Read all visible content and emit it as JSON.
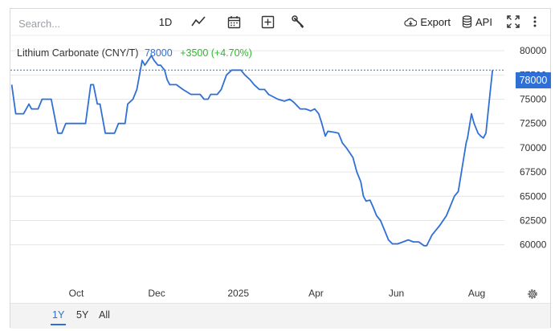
{
  "toolbar": {
    "search_placeholder": "Search...",
    "interval_label": "1D",
    "export_label": "Export",
    "api_label": "API"
  },
  "legend": {
    "name": "Lithium Carbonate (CNY/T)",
    "value": "78000",
    "change": "+3500 (+4.70%)"
  },
  "price_tag": "78000",
  "range_buttons": [
    "1Y",
    "5Y",
    "All"
  ],
  "active_range": "1Y",
  "colors": {
    "line": "#2f6fd6",
    "positive_change": "#2eb82e",
    "grid": "#e6e6e6"
  },
  "chart_data": {
    "type": "line",
    "title": "",
    "xlabel": "",
    "ylabel": "",
    "x_tick_labels": [
      "Oct",
      "Dec",
      "2025",
      "Apr",
      "Jun",
      "Aug"
    ],
    "x_ticks_at": [
      "2024-10-01",
      "2024-12-01",
      "2025-02-01",
      "2025-04-01",
      "2025-06-01",
      "2025-08-01"
    ],
    "x_range": [
      "2024-08-12",
      "2025-08-22"
    ],
    "y_ticks": [
      60000,
      62500,
      65000,
      67500,
      70000,
      72500,
      75000,
      77500,
      80000
    ],
    "ylim": [
      56000,
      81500
    ],
    "grid": true,
    "y_axis_side": "right",
    "series": [
      {
        "name": "Lithium Carbonate (CNY/T)",
        "points": [
          [
            "2024-08-13",
            76500
          ],
          [
            "2024-08-16",
            73500
          ],
          [
            "2024-08-22",
            73500
          ],
          [
            "2024-08-26",
            74500
          ],
          [
            "2024-08-28",
            74000
          ],
          [
            "2024-09-02",
            74000
          ],
          [
            "2024-09-05",
            75000
          ],
          [
            "2024-09-12",
            75000
          ],
          [
            "2024-09-17",
            71500
          ],
          [
            "2024-09-20",
            71500
          ],
          [
            "2024-09-23",
            72500
          ],
          [
            "2024-10-08",
            72500
          ],
          [
            "2024-10-12",
            76500
          ],
          [
            "2024-10-14",
            76500
          ],
          [
            "2024-10-17",
            74500
          ],
          [
            "2024-10-19",
            74500
          ],
          [
            "2024-10-23",
            71500
          ],
          [
            "2024-10-30",
            71500
          ],
          [
            "2024-11-02",
            72500
          ],
          [
            "2024-11-07",
            72500
          ],
          [
            "2024-11-09",
            74500
          ],
          [
            "2024-11-13",
            75000
          ],
          [
            "2024-11-16",
            76000
          ],
          [
            "2024-11-20",
            79000
          ],
          [
            "2024-11-22",
            78500
          ],
          [
            "2024-11-27",
            79500
          ],
          [
            "2024-11-29",
            79000
          ],
          [
            "2024-12-02",
            78500
          ],
          [
            "2024-12-04",
            78500
          ],
          [
            "2024-12-07",
            78000
          ],
          [
            "2024-12-09",
            77000
          ],
          [
            "2024-12-11",
            76500
          ],
          [
            "2024-12-16",
            76500
          ],
          [
            "2024-12-21",
            76000
          ],
          [
            "2024-12-27",
            75500
          ],
          [
            "2025-01-03",
            75500
          ],
          [
            "2025-01-06",
            75000
          ],
          [
            "2025-01-09",
            75000
          ],
          [
            "2025-01-11",
            75500
          ],
          [
            "2025-01-16",
            75500
          ],
          [
            "2025-01-19",
            76000
          ],
          [
            "2025-01-23",
            77500
          ],
          [
            "2025-01-27",
            78000
          ],
          [
            "2025-02-03",
            78000
          ],
          [
            "2025-02-06",
            77500
          ],
          [
            "2025-02-10",
            77000
          ],
          [
            "2025-02-13",
            76500
          ],
          [
            "2025-02-17",
            76000
          ],
          [
            "2025-02-21",
            76000
          ],
          [
            "2025-02-24",
            75500
          ],
          [
            "2025-03-03",
            75000
          ],
          [
            "2025-03-08",
            74800
          ],
          [
            "2025-03-12",
            75000
          ],
          [
            "2025-03-15",
            74700
          ],
          [
            "2025-03-20",
            74000
          ],
          [
            "2025-03-24",
            74000
          ],
          [
            "2025-03-28",
            73800
          ],
          [
            "2025-03-31",
            74000
          ],
          [
            "2025-04-03",
            73500
          ],
          [
            "2025-04-05",
            72700
          ],
          [
            "2025-04-08",
            71200
          ],
          [
            "2025-04-10",
            71700
          ],
          [
            "2025-04-15",
            71600
          ],
          [
            "2025-04-18",
            71500
          ],
          [
            "2025-04-21",
            70500
          ],
          [
            "2025-04-24",
            70000
          ],
          [
            "2025-04-29",
            69000
          ],
          [
            "2025-05-02",
            67500
          ],
          [
            "2025-05-05",
            66500
          ],
          [
            "2025-05-07",
            65000
          ],
          [
            "2025-05-09",
            64500
          ],
          [
            "2025-05-12",
            64600
          ],
          [
            "2025-05-14",
            64000
          ],
          [
            "2025-05-17",
            63000
          ],
          [
            "2025-05-20",
            62500
          ],
          [
            "2025-05-23",
            61500
          ],
          [
            "2025-05-26",
            60500
          ],
          [
            "2025-05-29",
            60100
          ],
          [
            "2025-06-02",
            60100
          ],
          [
            "2025-06-06",
            60300
          ],
          [
            "2025-06-10",
            60500
          ],
          [
            "2025-06-14",
            60300
          ],
          [
            "2025-06-18",
            60300
          ],
          [
            "2025-06-22",
            59900
          ],
          [
            "2025-06-24",
            59900
          ],
          [
            "2025-06-28",
            61000
          ],
          [
            "2025-07-01",
            61500
          ],
          [
            "2025-07-04",
            62000
          ],
          [
            "2025-07-09",
            63000
          ],
          [
            "2025-07-12",
            64000
          ],
          [
            "2025-07-15",
            65000
          ],
          [
            "2025-07-18",
            65500
          ],
          [
            "2025-07-21",
            68000
          ],
          [
            "2025-07-24",
            70500
          ],
          [
            "2025-07-25",
            71000
          ],
          [
            "2025-07-28",
            73500
          ],
          [
            "2025-07-30",
            72500
          ],
          [
            "2025-08-02",
            71500
          ],
          [
            "2025-08-04",
            71200
          ],
          [
            "2025-08-06",
            71000
          ],
          [
            "2025-08-08",
            71500
          ],
          [
            "2025-08-11",
            75500
          ],
          [
            "2025-08-13",
            78000
          ]
        ]
      }
    ],
    "annotations": [
      {
        "type": "horizontal-dotted-line",
        "y": 78000
      }
    ]
  }
}
